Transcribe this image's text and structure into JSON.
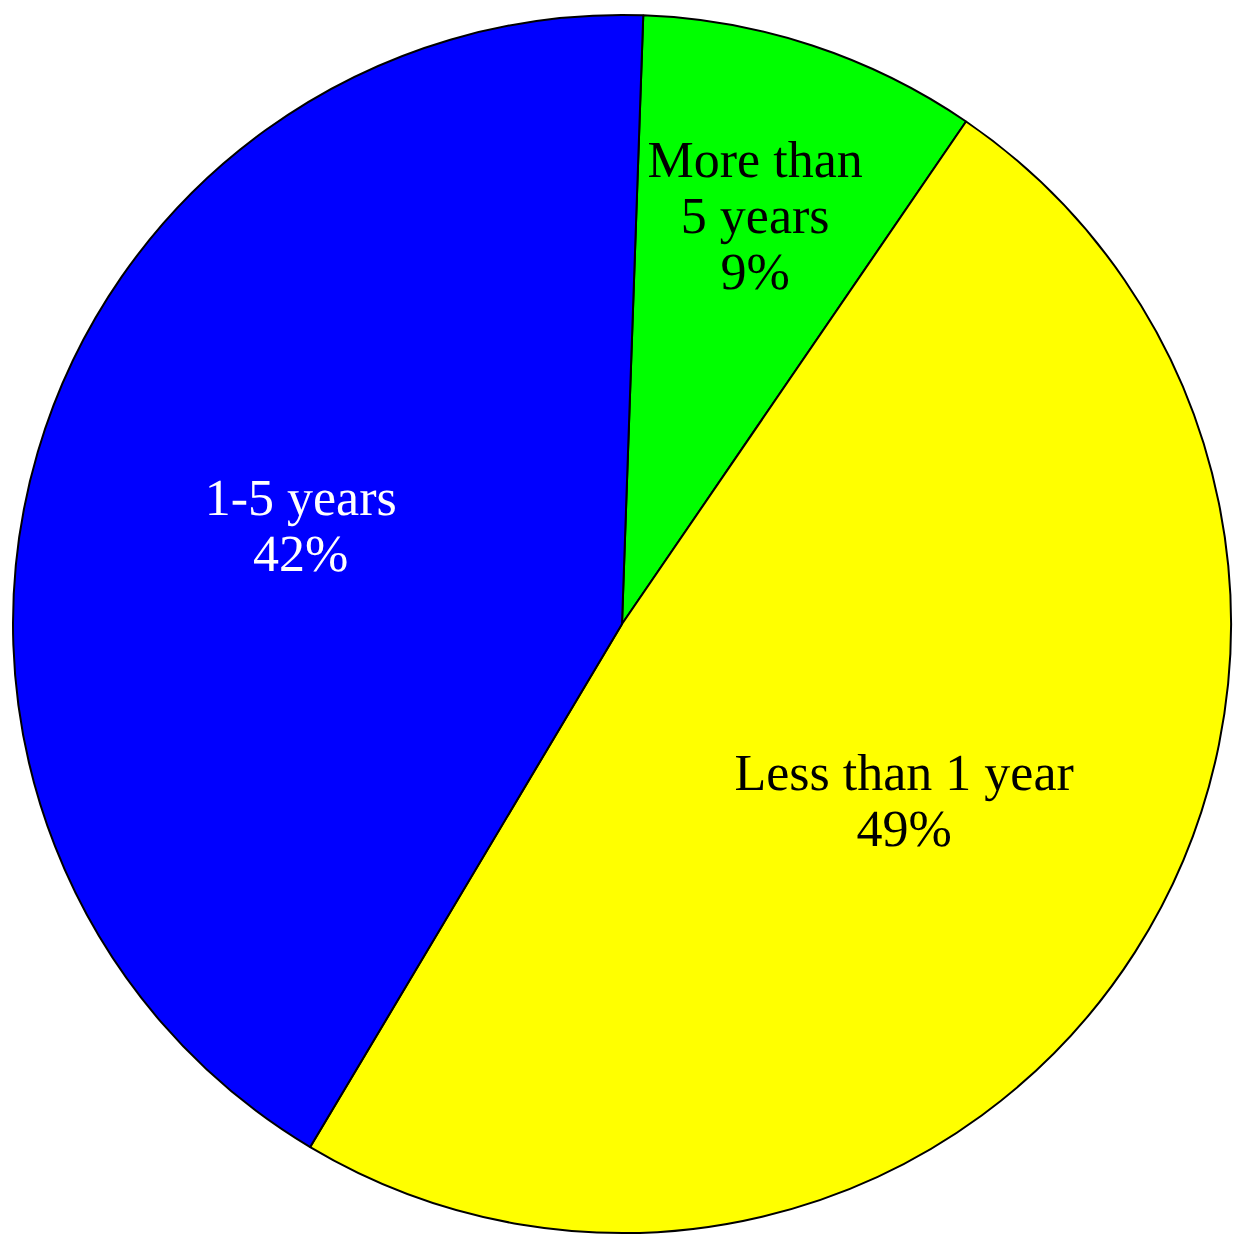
{
  "chart_data": {
    "type": "pie",
    "categories": [
      "More than 5 years",
      "Less than 1 year",
      "1-5 years"
    ],
    "values": [
      9,
      49,
      42
    ],
    "colors": [
      "#00ff00",
      "#ffff00",
      "#0000ff"
    ],
    "value_labels": [
      "9%",
      "49%",
      "42%"
    ],
    "legend": false
  }
}
